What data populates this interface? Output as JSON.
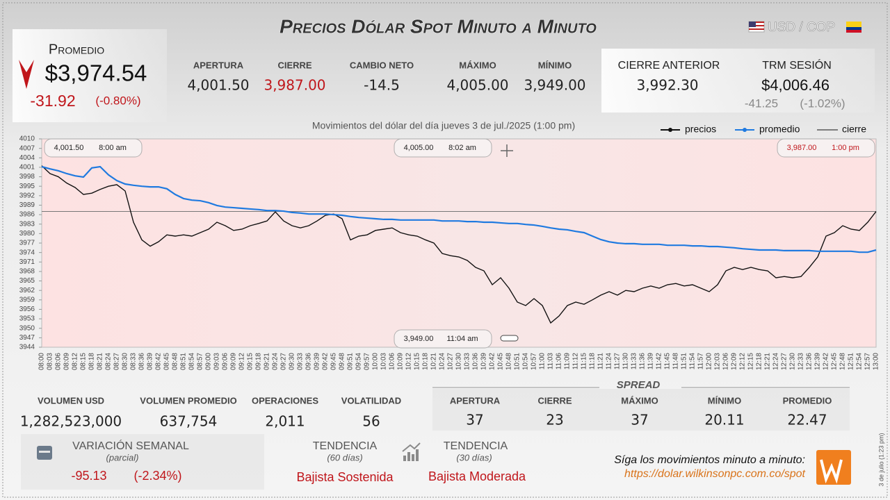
{
  "header": {
    "title": "Precios Dólar Spot Minuto a Minuto",
    "pair": "USD / COP"
  },
  "promedio": {
    "label": "Promedio",
    "value": "$3,974.54",
    "change": "-31.92",
    "change_pct": "(-0.80%)"
  },
  "stats": [
    {
      "label": "APERTURA",
      "value": "4,001.50"
    },
    {
      "label": "CIERRE",
      "value": "3,987.00"
    },
    {
      "label": "CAMBIO NETO",
      "value": "-14.5"
    },
    {
      "label": "MÁXIMO",
      "value": "4,005.00"
    },
    {
      "label": "MÍNIMO",
      "value": "3,949.00"
    }
  ],
  "previous": [
    {
      "label": "CIERRE ANTERIOR",
      "value": "3,992.30"
    },
    {
      "label": "TRM SESIÓN",
      "value": "$4,006.46",
      "change": "-41.25",
      "change_pct": "(-1.02%)"
    }
  ],
  "chart_data": {
    "type": "line",
    "title": "Movimientos del dólar del día jueves 3 de jul./2025 (1:00 pm)",
    "categories": [
      "08:00",
      "08:03",
      "08:06",
      "08:09",
      "08:12",
      "08:15",
      "08:18",
      "08:21",
      "08:24",
      "08:27",
      "08:30",
      "08:33",
      "08:36",
      "08:39",
      "08:42",
      "08:45",
      "08:48",
      "08:51",
      "08:54",
      "08:57",
      "09:00",
      "09:03",
      "09:06",
      "09:09",
      "09:12",
      "09:15",
      "09:18",
      "09:21",
      "09:24",
      "09:27",
      "09:30",
      "09:33",
      "09:36",
      "09:39",
      "09:42",
      "09:45",
      "09:48",
      "09:51",
      "09:54",
      "09:57",
      "10:00",
      "10:03",
      "10:06",
      "10:09",
      "10:12",
      "10:15",
      "10:18",
      "10:21",
      "10:24",
      "10:27",
      "10:30",
      "10:33",
      "10:36",
      "10:39",
      "10:42",
      "10:45",
      "10:48",
      "10:51",
      "10:54",
      "10:57",
      "11:00",
      "11:03",
      "11:06",
      "11:09",
      "11:12",
      "11:15",
      "11:18",
      "11:21",
      "11:24",
      "11:27",
      "11:30",
      "11:33",
      "11:36",
      "11:39",
      "11:42",
      "11:45",
      "11:48",
      "11:51",
      "11:54",
      "11:57",
      "12:00",
      "12:03",
      "12:06",
      "12:09",
      "12:12",
      "12:15",
      "12:18",
      "12:21",
      "12:24",
      "12:27",
      "12:30",
      "12:33",
      "12:36",
      "12:39",
      "12:42",
      "12:45",
      "12:48",
      "12:51",
      "12:54",
      "12:57",
      "13:00"
    ],
    "series": [
      {
        "name": "precios",
        "color": "#111111",
        "values": [
          4001.5,
          3999,
          3998,
          3996,
          3994.6,
          3992.4,
          3992.8,
          3994,
          3995,
          3995.5,
          3993.5,
          3983.6,
          3978,
          3976,
          3977.4,
          3979.6,
          3979.2,
          3979.6,
          3979.2,
          3980.3,
          3981.4,
          3983.6,
          3982.5,
          3981,
          3981.4,
          3982.5,
          3983.2,
          3984,
          3986.9,
          3984,
          3982.5,
          3981.8,
          3982.5,
          3984,
          3985.8,
          3986.2,
          3984.7,
          3978,
          3979.2,
          3979.6,
          3981,
          3981.4,
          3981.8,
          3980.3,
          3979.6,
          3979.2,
          3978,
          3977,
          3973.7,
          3973,
          3972.6,
          3971.5,
          3969.3,
          3968.2,
          3963.8,
          3966,
          3962.7,
          3958.3,
          3957.2,
          3959.4,
          3957.2,
          3951.7,
          3953.9,
          3957.2,
          3958.3,
          3957.6,
          3959,
          3960.5,
          3961.6,
          3960.5,
          3962,
          3961.6,
          3962.7,
          3963.4,
          3962.7,
          3963.8,
          3964.2,
          3963.4,
          3963.8,
          3962.7,
          3961.6,
          3963.8,
          3968.2,
          3969.3,
          3968.6,
          3969.3,
          3968.6,
          3968.2,
          3966,
          3966.4,
          3966,
          3966.4,
          3969.3,
          3972.6,
          3979.2,
          3980.3,
          3982.5,
          3981.4,
          3981,
          3983.6,
          3987
        ]
      },
      {
        "name": "promedio",
        "color": "#1f7ae0",
        "values": [
          4001.2,
          4000.5,
          3999.9,
          3999,
          3998.3,
          3997.9,
          4000.8,
          4001.2,
          3998.6,
          3996.8,
          3995.7,
          3995.3,
          3995,
          3994.8,
          3994.8,
          3994.2,
          3992.4,
          3991.1,
          3990.6,
          3990.4,
          3989.8,
          3988.9,
          3988.4,
          3988.2,
          3988,
          3987.8,
          3987.6,
          3987.3,
          3987.3,
          3987.1,
          3986.7,
          3986.5,
          3986.2,
          3986.2,
          3986.2,
          3986,
          3985.8,
          3985.4,
          3985.1,
          3984.9,
          3984.7,
          3984.5,
          3984.5,
          3984.3,
          3984.3,
          3984.3,
          3984.3,
          3984.3,
          3984,
          3984,
          3984,
          3983.8,
          3983.8,
          3983.6,
          3983.6,
          3983.4,
          3983.2,
          3983.2,
          3982.9,
          3982.7,
          3982.3,
          3981.8,
          3981.4,
          3981.2,
          3980.7,
          3980.3,
          3979.2,
          3978.1,
          3977.4,
          3977,
          3976.8,
          3976.8,
          3976.6,
          3976.6,
          3976.6,
          3976.3,
          3976.3,
          3976.3,
          3976.1,
          3976.1,
          3975.9,
          3975.9,
          3975.7,
          3975.5,
          3975.2,
          3975,
          3974.8,
          3974.8,
          3974.8,
          3974.6,
          3974.6,
          3974.6,
          3974.6,
          3974.4,
          3974.4,
          3974.4,
          3974.4,
          3974.4,
          3974.1,
          3974.1,
          3974.8
        ]
      }
    ],
    "close_line": {
      "name": "cierre",
      "value": 3987,
      "color": "#777777"
    },
    "ylim": [
      3944,
      4010
    ],
    "yticks": [
      4010,
      4007,
      4004,
      4001,
      3998,
      3995,
      3992,
      3989,
      3986,
      3983,
      3980,
      3977,
      3974,
      3971,
      3968,
      3965,
      3962,
      3959,
      3956,
      3953,
      3950,
      3947,
      3944
    ],
    "grid": false,
    "legend": "top-right",
    "annotations": [
      {
        "price": "4,001.50",
        "time": "8:00 am"
      },
      {
        "price": "4,005.00",
        "time": "8:02 am"
      },
      {
        "price": "3,987.00",
        "time": "1:00 pm"
      },
      {
        "price": "3,949.00",
        "time": "11:04 am"
      }
    ]
  },
  "volume": [
    {
      "label": "VOLUMEN USD",
      "value": "1,282,523,000"
    },
    {
      "label": "VOLUMEN PROMEDIO",
      "value": "637,754"
    },
    {
      "label": "OPERACIONES",
      "value": "2,011"
    },
    {
      "label": "VOLATILIDAD",
      "value": "56"
    }
  ],
  "spread": {
    "title": "SPREAD",
    "items": [
      {
        "label": "APERTURA",
        "value": "37"
      },
      {
        "label": "CIERRE",
        "value": "23"
      },
      {
        "label": "MÁXIMO",
        "value": "37"
      },
      {
        "label": "MÍNIMO",
        "value": "20.11"
      },
      {
        "label": "PROMEDIO",
        "value": "22.47"
      }
    ]
  },
  "weekly": {
    "label": "VARIACIÓN SEMANAL",
    "note": "(parcial)",
    "change": "-95.13",
    "change_pct": "(-2.34%)"
  },
  "trends": [
    {
      "label": "TENDENCIA",
      "period": "(60 días)",
      "value": "Bajista Sostenida"
    },
    {
      "label": "TENDENCIA",
      "period": "(30 días)",
      "value": "Bajista Moderada"
    }
  ],
  "footer": {
    "follow": "Síga los movimientos minuto a minuto:",
    "url": "https://dolar.wilkinsonpc.com.co/spot",
    "timestamp": "3 de julio (1:23 pm)"
  }
}
